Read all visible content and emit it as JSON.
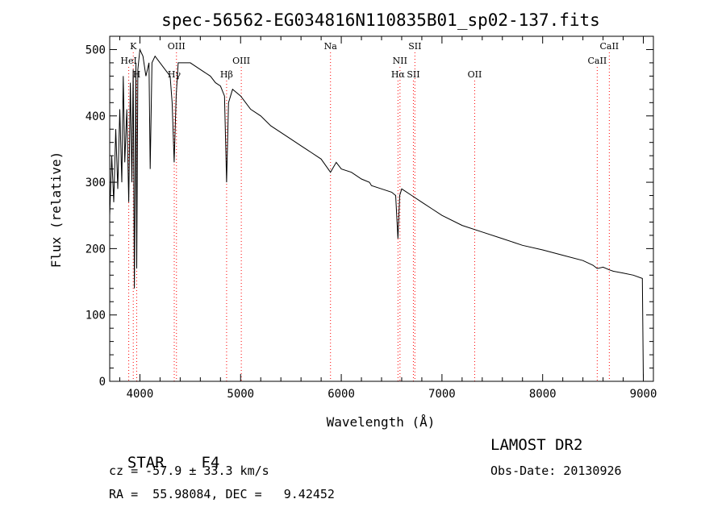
{
  "chart_data": {
    "type": "line",
    "title": "spec-56562-EG034816N110835B01_sp02-137.fits",
    "xlabel": "Wavelength (Å)",
    "ylabel": "Flux (relative)",
    "xlim": [
      3700,
      9100
    ],
    "ylim": [
      0,
      520
    ],
    "xticks": [
      4000,
      5000,
      6000,
      7000,
      8000,
      9000
    ],
    "yticks": [
      0,
      100,
      200,
      300,
      400,
      500
    ],
    "grid": false,
    "line_color": "#000000",
    "marker_color": "#ff0000",
    "series": [
      {
        "x": [
          3700,
          3720,
          3740,
          3760,
          3780,
          3800,
          3820,
          3835,
          3850,
          3870,
          3889,
          3905,
          3920,
          3933,
          3945,
          3960,
          3968,
          3980,
          4000,
          4030,
          4060,
          4090,
          4102,
          4120,
          4150,
          4200,
          4250,
          4300,
          4320,
          4340,
          4360,
          4380,
          4420,
          4500,
          4600,
          4700,
          4750,
          4800,
          4840,
          4861,
          4880,
          4920,
          5000,
          5100,
          5200,
          5300,
          5400,
          5500,
          5600,
          5700,
          5800,
          5893,
          5950,
          6000,
          6100,
          6200,
          6280,
          6300,
          6400,
          6500,
          6540,
          6563,
          6580,
          6600,
          6700,
          6800,
          6900,
          7000,
          7200,
          7400,
          7600,
          7800,
          8000,
          8200,
          8400,
          8500,
          8542,
          8600,
          8662,
          8700,
          8800,
          8900,
          8990,
          9000
        ],
        "y": [
          250,
          340,
          270,
          380,
          290,
          410,
          300,
          460,
          330,
          410,
          270,
          450,
          300,
          470,
          140,
          480,
          170,
          470,
          500,
          490,
          460,
          480,
          320,
          480,
          490,
          480,
          470,
          460,
          420,
          330,
          430,
          480,
          480,
          480,
          470,
          460,
          450,
          445,
          430,
          300,
          420,
          440,
          430,
          410,
          400,
          385,
          375,
          365,
          355,
          345,
          335,
          315,
          330,
          320,
          315,
          305,
          300,
          295,
          290,
          285,
          280,
          215,
          280,
          290,
          280,
          270,
          260,
          250,
          235,
          225,
          215,
          205,
          198,
          190,
          182,
          175,
          170,
          172,
          168,
          166,
          163,
          160,
          155,
          5
        ]
      }
    ],
    "line_markers": [
      {
        "label": "K",
        "x": 3934,
        "row": 0
      },
      {
        "label": "HeI",
        "x": 3889,
        "row": 1
      },
      {
        "label": "H",
        "x": 3968,
        "row": 2
      },
      {
        "label": "OIII",
        "x": 4363,
        "row": 0
      },
      {
        "label": "Hγ",
        "x": 4341,
        "row": 2
      },
      {
        "label": "Hβ",
        "x": 4861,
        "row": 2
      },
      {
        "label": "OIII",
        "x": 5007,
        "row": 1
      },
      {
        "label": "Na",
        "x": 5893,
        "row": 0
      },
      {
        "label": "SII",
        "x": 6731,
        "row": 0
      },
      {
        "label": "NII",
        "x": 6583,
        "row": 1
      },
      {
        "label": "Hα",
        "x": 6563,
        "row": 2
      },
      {
        "label": "SII",
        "x": 6716,
        "row": 2
      },
      {
        "label": "OII",
        "x": 7325,
        "row": 2
      },
      {
        "label": "CaII",
        "x": 8662,
        "row": 0
      },
      {
        "label": "CaII",
        "x": 8542,
        "row": 1
      }
    ]
  },
  "info": {
    "class_label": "STAR",
    "subclass": "F4",
    "cz": "cz = -57.9 ± 33.3 km/s",
    "coords": "RA =  55.98084, DEC =   9.42452",
    "survey": "LAMOST DR2",
    "obs_date": "Obs-Date: 20130926"
  }
}
